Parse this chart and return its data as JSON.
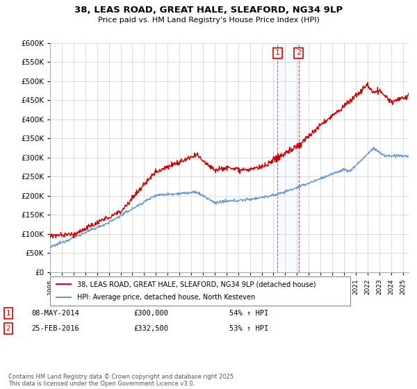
{
  "title1": "38, LEAS ROAD, GREAT HALE, SLEAFORD, NG34 9LP",
  "title2": "Price paid vs. HM Land Registry's House Price Index (HPI)",
  "ylim": [
    0,
    600000
  ],
  "ytick_vals": [
    0,
    50000,
    100000,
    150000,
    200000,
    250000,
    300000,
    350000,
    400000,
    450000,
    500000,
    550000,
    600000
  ],
  "sale1_date": "08-MAY-2014",
  "sale1_price": 300000,
  "sale1_hpi": "54% ↑ HPI",
  "sale2_date": "25-FEB-2016",
  "sale2_price": 332500,
  "sale2_hpi": "53% ↑ HPI",
  "red_color": "#cc0000",
  "blue_color": "#6699cc",
  "legend1": "38, LEAS ROAD, GREAT HALE, SLEAFORD, NG34 9LP (detached house)",
  "legend2": "HPI: Average price, detached house, North Kesteven",
  "footer": "Contains HM Land Registry data © Crown copyright and database right 2025.\nThis data is licensed under the Open Government Licence v3.0.",
  "sale1_x": 2014.35,
  "sale2_x": 2016.15,
  "sale1_y": 300000,
  "sale2_y": 332500,
  "xmin": 1995,
  "xmax": 2025.5
}
